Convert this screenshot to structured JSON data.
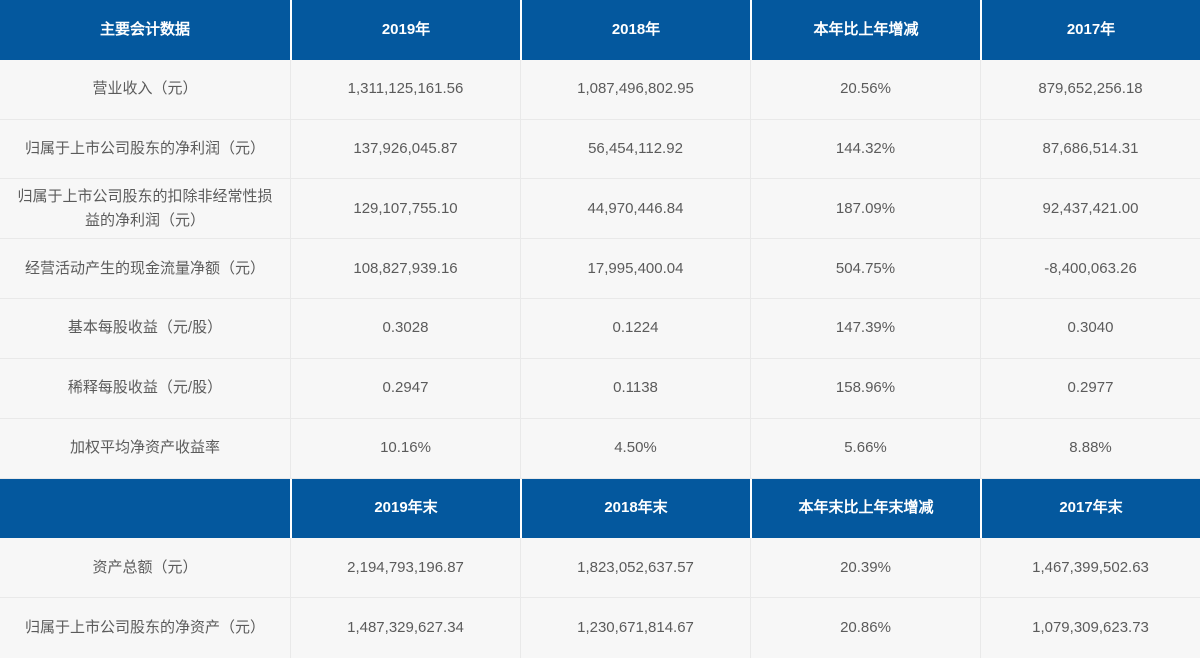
{
  "colors": {
    "header_bg": "#04589e",
    "header_text": "#ffffff",
    "body_bg": "#f7f7f7",
    "body_text": "#5b5b5b",
    "grid_line": "#e9e9e9"
  },
  "table": {
    "header1": [
      "主要会计数据",
      "2019年",
      "2018年",
      "本年比上年增减",
      "2017年"
    ],
    "rows1": [
      [
        "营业收入（元）",
        "1,311,125,161.56",
        "1,087,496,802.95",
        "20.56%",
        "879,652,256.18"
      ],
      [
        "归属于上市公司股东的净利润（元）",
        "137,926,045.87",
        "56,454,112.92",
        "144.32%",
        "87,686,514.31"
      ],
      [
        "归属于上市公司股东的扣除非经常性损益的净利润（元）",
        "129,107,755.10",
        "44,970,446.84",
        "187.09%",
        "92,437,421.00"
      ],
      [
        "经营活动产生的现金流量净额（元）",
        "108,827,939.16",
        "17,995,400.04",
        "504.75%",
        "-8,400,063.26"
      ],
      [
        "基本每股收益（元/股）",
        "0.3028",
        "0.1224",
        "147.39%",
        "0.3040"
      ],
      [
        "稀释每股收益（元/股）",
        "0.2947",
        "0.1138",
        "158.96%",
        "0.2977"
      ],
      [
        "加权平均净资产收益率",
        "10.16%",
        "4.50%",
        "5.66%",
        "8.88%"
      ]
    ],
    "header2": [
      "",
      "2019年末",
      "2018年末",
      "本年末比上年末增减",
      "2017年末"
    ],
    "rows2": [
      [
        "资产总额（元）",
        "2,194,793,196.87",
        "1,823,052,637.57",
        "20.39%",
        "1,467,399,502.63"
      ],
      [
        "归属于上市公司股东的净资产（元）",
        "1,487,329,627.34",
        "1,230,671,814.67",
        "20.86%",
        "1,079,309,623.73"
      ]
    ]
  }
}
